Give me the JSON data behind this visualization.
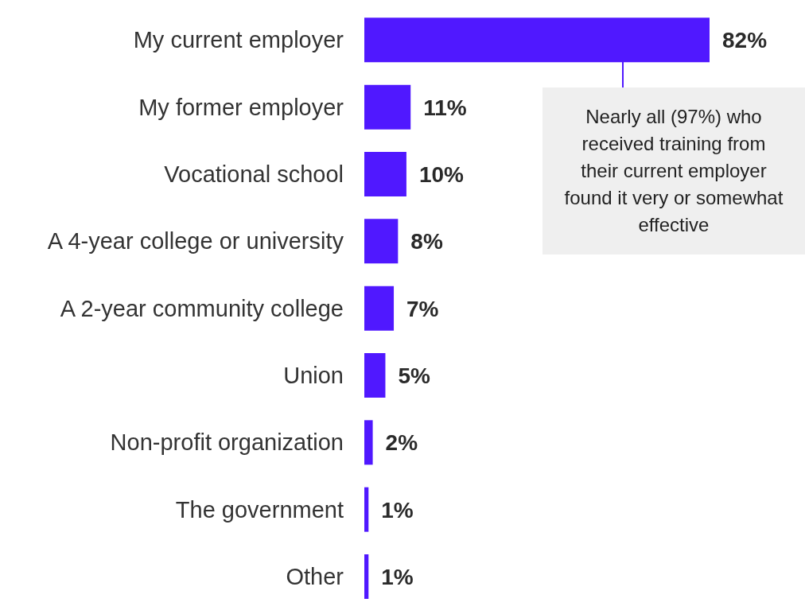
{
  "chart_data": {
    "type": "bar",
    "orientation": "horizontal",
    "categories": [
      "My current employer",
      "My former employer",
      "Vocational school",
      "A 4-year college or university",
      "A 2-year community college",
      "Union",
      "Non-profit organization",
      "The government",
      "Other"
    ],
    "values": [
      82,
      11,
      10,
      8,
      7,
      5,
      2,
      1,
      1
    ],
    "value_labels": [
      "82%",
      "11%",
      "10%",
      "8%",
      "7%",
      "5%",
      "2%",
      "1%",
      "1%"
    ],
    "color": "#5018ff",
    "annotations": [
      "Nearly all (97%) who received training from their current employer found it very or somewhat effective"
    ]
  }
}
